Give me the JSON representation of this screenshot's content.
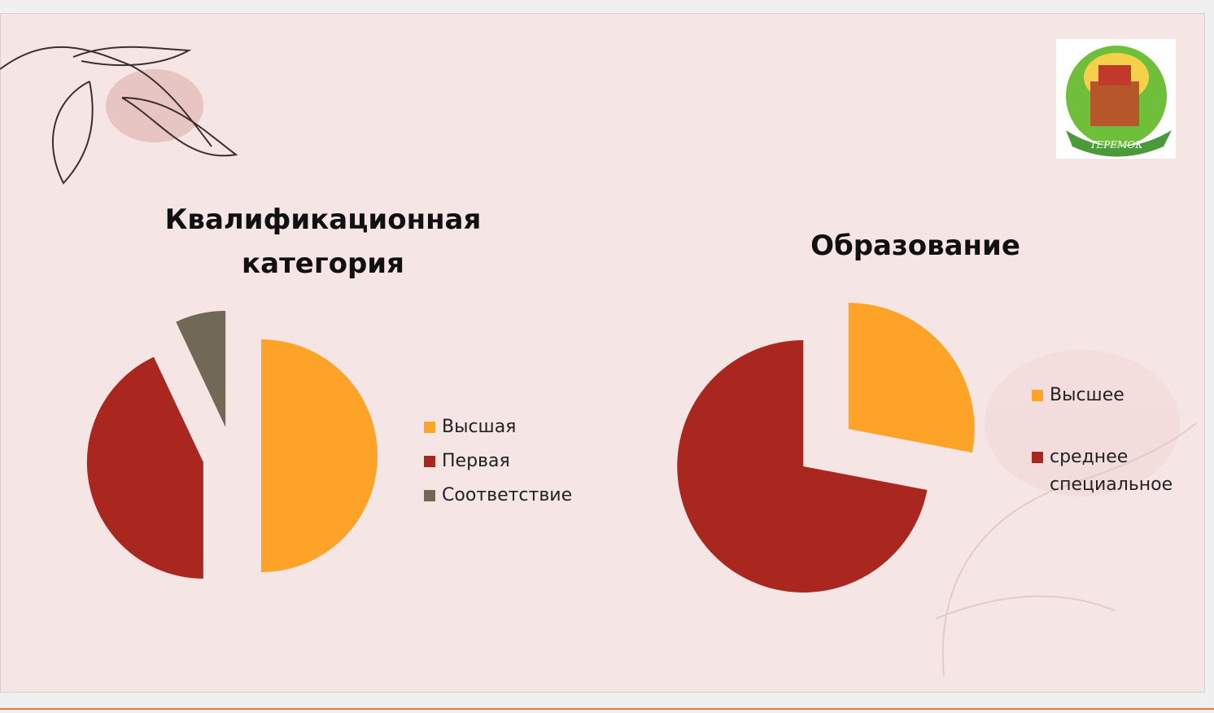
{
  "chart_data": [
    {
      "type": "pie",
      "title": "Квалификационная категория",
      "categories": [
        "Высшая",
        "Первая",
        "Соответствие"
      ],
      "values": [
        50,
        43,
        7
      ],
      "colors": [
        "#fda428",
        "#a9271f",
        "#726857"
      ],
      "exploded": true
    },
    {
      "type": "pie",
      "title": "Образование",
      "categories": [
        "Высшее",
        "среднее специальное"
      ],
      "values": [
        28,
        72
      ],
      "colors": [
        "#fda428",
        "#a9271f"
      ],
      "exploded": true
    }
  ],
  "logo": {
    "text": "ТЕРЕМОК"
  }
}
